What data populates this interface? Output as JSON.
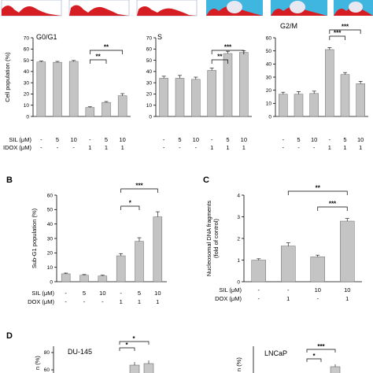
{
  "panel_labels": [
    "B",
    "C",
    "D"
  ],
  "chart_data": [
    {
      "id": "g0g1",
      "type": "bar",
      "title": "G0/G1",
      "ylabel": "Cell population (%)",
      "ylim": [
        0,
        70
      ],
      "yticks": [
        0,
        10,
        20,
        30,
        40,
        50,
        60,
        70
      ],
      "values": [
        48.5,
        48.2,
        49,
        8,
        12.5,
        18.5
      ],
      "errors": [
        0.8,
        0.8,
        0.8,
        0.6,
        0.8,
        1.8
      ],
      "condition_rows": [
        {
          "label": "SIL (μM)",
          "values": [
            "-",
            "5",
            "10",
            "-",
            "5",
            "10"
          ]
        },
        {
          "label": "IDOX (μM)",
          "values": [
            "-",
            "-",
            "-",
            "1",
            "1",
            "1"
          ]
        }
      ],
      "significance": [
        {
          "from": 3,
          "to": 4,
          "label": "**"
        },
        {
          "from": 3,
          "to": 5,
          "label": "**"
        }
      ],
      "grid": false
    },
    {
      "id": "s",
      "type": "bar",
      "title": "S",
      "ylim": [
        0,
        70
      ],
      "yticks": [
        0,
        10,
        20,
        30,
        40,
        50,
        60,
        70
      ],
      "values": [
        34,
        34,
        33,
        41,
        56,
        57
      ],
      "errors": [
        1.8,
        2.5,
        2,
        2,
        2,
        1.5
      ],
      "condition_rows": [
        {
          "label": "",
          "values": [
            "-",
            "5",
            "10",
            "-",
            "5",
            "10"
          ]
        },
        {
          "label": "",
          "values": [
            "-",
            "-",
            "-",
            "1",
            "1",
            "1"
          ]
        }
      ],
      "significance": [
        {
          "from": 3,
          "to": 4,
          "label": "**"
        },
        {
          "from": 3,
          "to": 5,
          "label": "***"
        }
      ],
      "grid": false
    },
    {
      "id": "g2m",
      "type": "bar",
      "title": "G2/M",
      "ylim": [
        0,
        60
      ],
      "yticks": [
        0,
        10,
        20,
        30,
        40,
        50,
        60
      ],
      "values": [
        17,
        17,
        17.5,
        51,
        32,
        25
      ],
      "errors": [
        1.5,
        2,
        1.8,
        1.5,
        1.5,
        1.8
      ],
      "condition_rows": [
        {
          "label": "",
          "values": [
            "-",
            "5",
            "10",
            "-",
            "5",
            "10"
          ]
        },
        {
          "label": "",
          "values": [
            "-",
            "-",
            "-",
            "1",
            "1",
            "1"
          ]
        }
      ],
      "significance": [
        {
          "from": 3,
          "to": 4,
          "label": "***"
        },
        {
          "from": 3,
          "to": 5,
          "label": "***"
        }
      ],
      "grid": false
    },
    {
      "id": "subg1",
      "type": "bar",
      "panel": "B",
      "ylabel": "Sub-G1 population (%)",
      "ylim": [
        0,
        60
      ],
      "yticks": [
        0,
        10,
        20,
        30,
        40,
        50,
        60
      ],
      "values": [
        5.5,
        4.5,
        4,
        18,
        28,
        45
      ],
      "errors": [
        0.5,
        0.5,
        0.5,
        1.5,
        2.5,
        3.5
      ],
      "condition_rows": [
        {
          "label": "SIL (μM)",
          "values": [
            "-",
            "5",
            "10",
            "-",
            "5",
            "10"
          ]
        },
        {
          "label": "DOX (μM)",
          "values": [
            "-",
            "-",
            "-",
            "1",
            "1",
            "1"
          ]
        }
      ],
      "significance": [
        {
          "from": 3,
          "to": 4,
          "label": "*"
        },
        {
          "from": 3,
          "to": 5,
          "label": "***"
        }
      ],
      "grid": false
    },
    {
      "id": "dnafrag",
      "type": "bar",
      "panel": "C",
      "ylabel": "Nucleosomal DNA fragments (fold of control)",
      "ylim": [
        0,
        4
      ],
      "yticks": [
        0,
        1,
        2,
        3,
        4
      ],
      "values": [
        1.0,
        1.65,
        1.15,
        2.8
      ],
      "errors": [
        0.06,
        0.15,
        0.08,
        0.12
      ],
      "condition_rows": [
        {
          "label": "SIL (μM)",
          "values": [
            "-",
            "-",
            "10",
            "10"
          ]
        },
        {
          "label": "DOX (μM)",
          "values": [
            "-",
            "1",
            "-",
            "1"
          ]
        }
      ],
      "significance": [
        {
          "from": 1,
          "to": 3,
          "label": "**"
        },
        {
          "from": 2,
          "to": 3,
          "label": "***"
        }
      ],
      "grid": false
    },
    {
      "id": "du145",
      "type": "bar",
      "panel": "D",
      "title": "DU-145",
      "yticks_visible": [
        60,
        80
      ],
      "values": [],
      "partial": true,
      "significance_labels": [
        "*",
        "*"
      ]
    },
    {
      "id": "lncap",
      "type": "bar",
      "title": "LNCaP",
      "values": [],
      "partial": true,
      "significance_labels": [
        "***",
        "*"
      ]
    }
  ]
}
